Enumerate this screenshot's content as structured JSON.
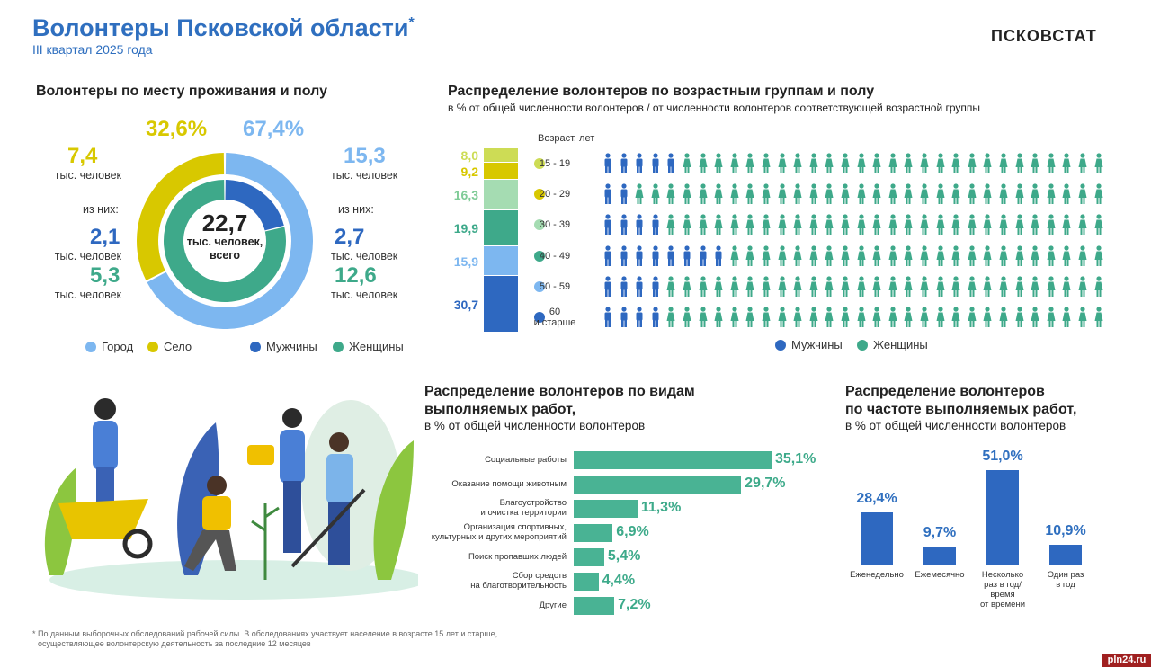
{
  "header": {
    "title": "Волонтеры Псковской области",
    "title_mark": "*",
    "subtitle": "III квартал 2025 года",
    "logo": "ПСКОВСТАТ"
  },
  "colors": {
    "city": "#7db7f0",
    "village": "#d8c800",
    "men": "#2e68c0",
    "women": "#3ea98a",
    "title": "#2f6fbf"
  },
  "residence": {
    "title": "Волонтеры по месту проживания и полу",
    "village_pct": "32,6%",
    "city_pct": "67,4%",
    "village_total": "7,4",
    "village_total_unit": "тыс. человек",
    "city_total": "15,3",
    "city_total_unit": "тыс. человек",
    "of_them_left": "из них:",
    "of_them_right": "из них:",
    "village_men": "2,1",
    "village_men_unit": "тыс. человек",
    "village_women": "5,3",
    "village_women_unit": "тыс. человек",
    "city_men": "2,7",
    "city_men_unit": "тыс. человек",
    "city_women": "12,6",
    "city_women_unit": "тыс. человек",
    "center_value": "22,7",
    "center_line1": "тыс. человек,",
    "center_line2": "всего",
    "legend": {
      "city": "Город",
      "village": "Село",
      "men": "Мужчины",
      "women": "Женщины"
    }
  },
  "age": {
    "title": "Распределение волонтеров по возрастным группам и полу",
    "subtitle": "в % от общей численности волонтеров / от численности волонтеров соответствующей возрастной группы",
    "age_header": "Возраст, лет",
    "legend": {
      "men": "Мужчины",
      "women": "Женщины"
    }
  },
  "works": {
    "title_line1": "Распределение волонтеров по видам",
    "title_line2": "выполняемых работ,",
    "subtitle": "в % от общей численности волонтеров"
  },
  "frequency": {
    "title_line1": "Распределение волонтеров",
    "title_line2": "по частоте выполняемых работ,",
    "subtitle": "в % от общей численности волонтеров"
  },
  "footnote": {
    "line1": "* По данным выборочных обследований рабочей силы. В обследованиях участвует население в возрасте 15 лет и старше,",
    "line2": "осуществляющее волонтерскую деятельность за последние 12 месяцев"
  },
  "watermark": "pln24.ru",
  "chart_data": [
    {
      "type": "pie",
      "title": "Волонтеры по месту проживания и полу",
      "outer_ring": [
        {
          "name": "Город",
          "value": 67.4,
          "color": "#7db7f0"
        },
        {
          "name": "Село",
          "value": 32.6,
          "color": "#d8c800"
        }
      ],
      "inner_ring": [
        {
          "name": "Мужчины",
          "value": 4.8,
          "color": "#2e68c0"
        },
        {
          "name": "Женщины",
          "value": 17.9,
          "color": "#3ea98a"
        }
      ]
    },
    {
      "type": "bar",
      "title": "Распределение волонтеров по возрастным группам и полу",
      "categories": [
        "15 - 19",
        "20 - 29",
        "30 - 39",
        "40 - 49",
        "50 - 59",
        "60 и старше"
      ],
      "values": [
        8.0,
        9.2,
        16.3,
        19.9,
        15.9,
        30.7
      ],
      "value_labels": [
        "8,0",
        "9,2",
        "16,3",
        "19,9",
        "15,9",
        "30,7"
      ],
      "colors": [
        "#cddc55",
        "#d8c800",
        "#a5dcb2",
        "#3ea98a",
        "#7db7f0",
        "#2e68c0"
      ],
      "men_icons_of_32": [
        5,
        2,
        4,
        8,
        4,
        4
      ]
    },
    {
      "type": "bar",
      "title": "Распределение волонтеров по видам выполняемых работ",
      "categories": [
        "Социальные работы",
        "Оказание помощи животным",
        "Благоустройство и очистка территории",
        "Организация спортивных, культурных и других мероприятий",
        "Поиск пропавших людей",
        "Сбор средств на благотворительность",
        "Другие"
      ],
      "values": [
        35.1,
        29.7,
        11.3,
        6.9,
        5.4,
        4.4,
        7.2
      ],
      "value_labels": [
        "35,1%",
        "29,7%",
        "11,3%",
        "6,9%",
        "5,4%",
        "4,4%",
        "7,2%"
      ]
    },
    {
      "type": "bar",
      "title": "Распределение волонтеров по частоте выполняемых работ",
      "categories": [
        "Еженедельно",
        "Ежемесячно",
        "Несколько раз в год/ время от времени",
        "Один раз в год"
      ],
      "values": [
        28.4,
        9.7,
        51.0,
        10.9
      ],
      "value_labels": [
        "28,4%",
        "9,7%",
        "51,0%",
        "10,9%"
      ]
    }
  ]
}
